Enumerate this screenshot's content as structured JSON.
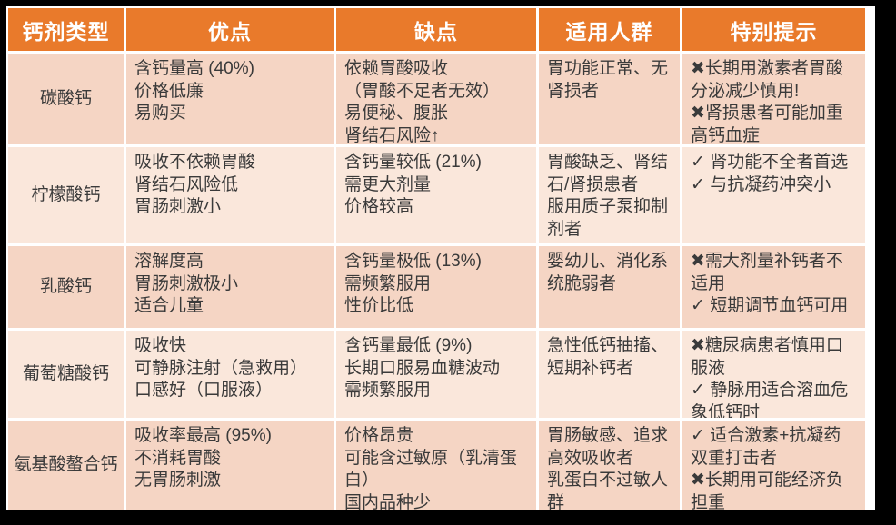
{
  "colors": {
    "header_bg": "#E97A2B",
    "header_text": "#FFFFFF",
    "row_dark": "#F5D5C4",
    "row_light": "#FAE7DB",
    "body_text": "#3A3A3A",
    "frame": "#000000"
  },
  "table": {
    "headers": [
      "钙剂类型",
      "优点",
      "缺点",
      "适用人群",
      "特别提示"
    ],
    "rows": [
      {
        "name": "碳酸钙",
        "pros": [
          "含钙量高 (40%)",
          "价格低廉",
          "易购买"
        ],
        "cons": [
          "依赖胃酸吸收",
          "（胃酸不足者无效）",
          "易便秘、腹胀",
          "肾结石风险↑"
        ],
        "people": [
          "胃功能正常、无肾损者"
        ],
        "tips": [
          "✖长期用激素者胃酸分泌减少慎用!",
          "✖肾损患者可能加重高钙血症"
        ]
      },
      {
        "name": "柠檬酸钙",
        "pros": [
          "吸收不依赖胃酸",
          "肾结石风险低",
          "胃肠刺激小"
        ],
        "cons": [
          "含钙量较低 (21%)",
          "需更大剂量",
          "价格较高"
        ],
        "people": [
          "胃酸缺乏、肾结石/肾损患者",
          "服用质子泵抑制剂者"
        ],
        "tips": [
          "✓ 肾功能不全者首选",
          "✓ 与抗凝药冲突小"
        ]
      },
      {
        "name": "乳酸钙",
        "pros": [
          "溶解度高",
          "胃肠刺激极小",
          "适合儿童"
        ],
        "cons": [
          "含钙量极低 (13%)",
          "需频繁服用",
          "性价比低"
        ],
        "people": [
          "婴幼儿、消化系统脆弱者"
        ],
        "tips": [
          "✖需大剂量补钙者不适用",
          "✓ 短期调节血钙可用"
        ]
      },
      {
        "name": "葡萄糖酸钙",
        "pros": [
          "吸收快",
          "可静脉注射（急救用）",
          "口感好（口服液）"
        ],
        "cons": [
          "含钙量最低 (9%)",
          "长期口服易血糖波动",
          "需频繁服用"
        ],
        "people": [
          "急性低钙抽搐、短期补钙者"
        ],
        "tips": [
          "✖糖尿病患者慎用口服液",
          "✓ 静脉用适合溶血危象低钙时"
        ]
      },
      {
        "name": "氨基酸螯合钙",
        "pros": [
          "吸收率最高 (95%)",
          "不消耗胃酸",
          "无胃肠刺激"
        ],
        "cons": [
          "价格昂贵",
          "可能含过敏原（乳清蛋白）",
          "国内品种少"
        ],
        "people": [
          "胃肠敏感、追求高效吸收者",
          "乳蛋白不过敏人群"
        ],
        "tips": [
          "✓ 适合激素+抗凝药双重打击者",
          "✖长期用可能经济负担重"
        ]
      }
    ]
  }
}
